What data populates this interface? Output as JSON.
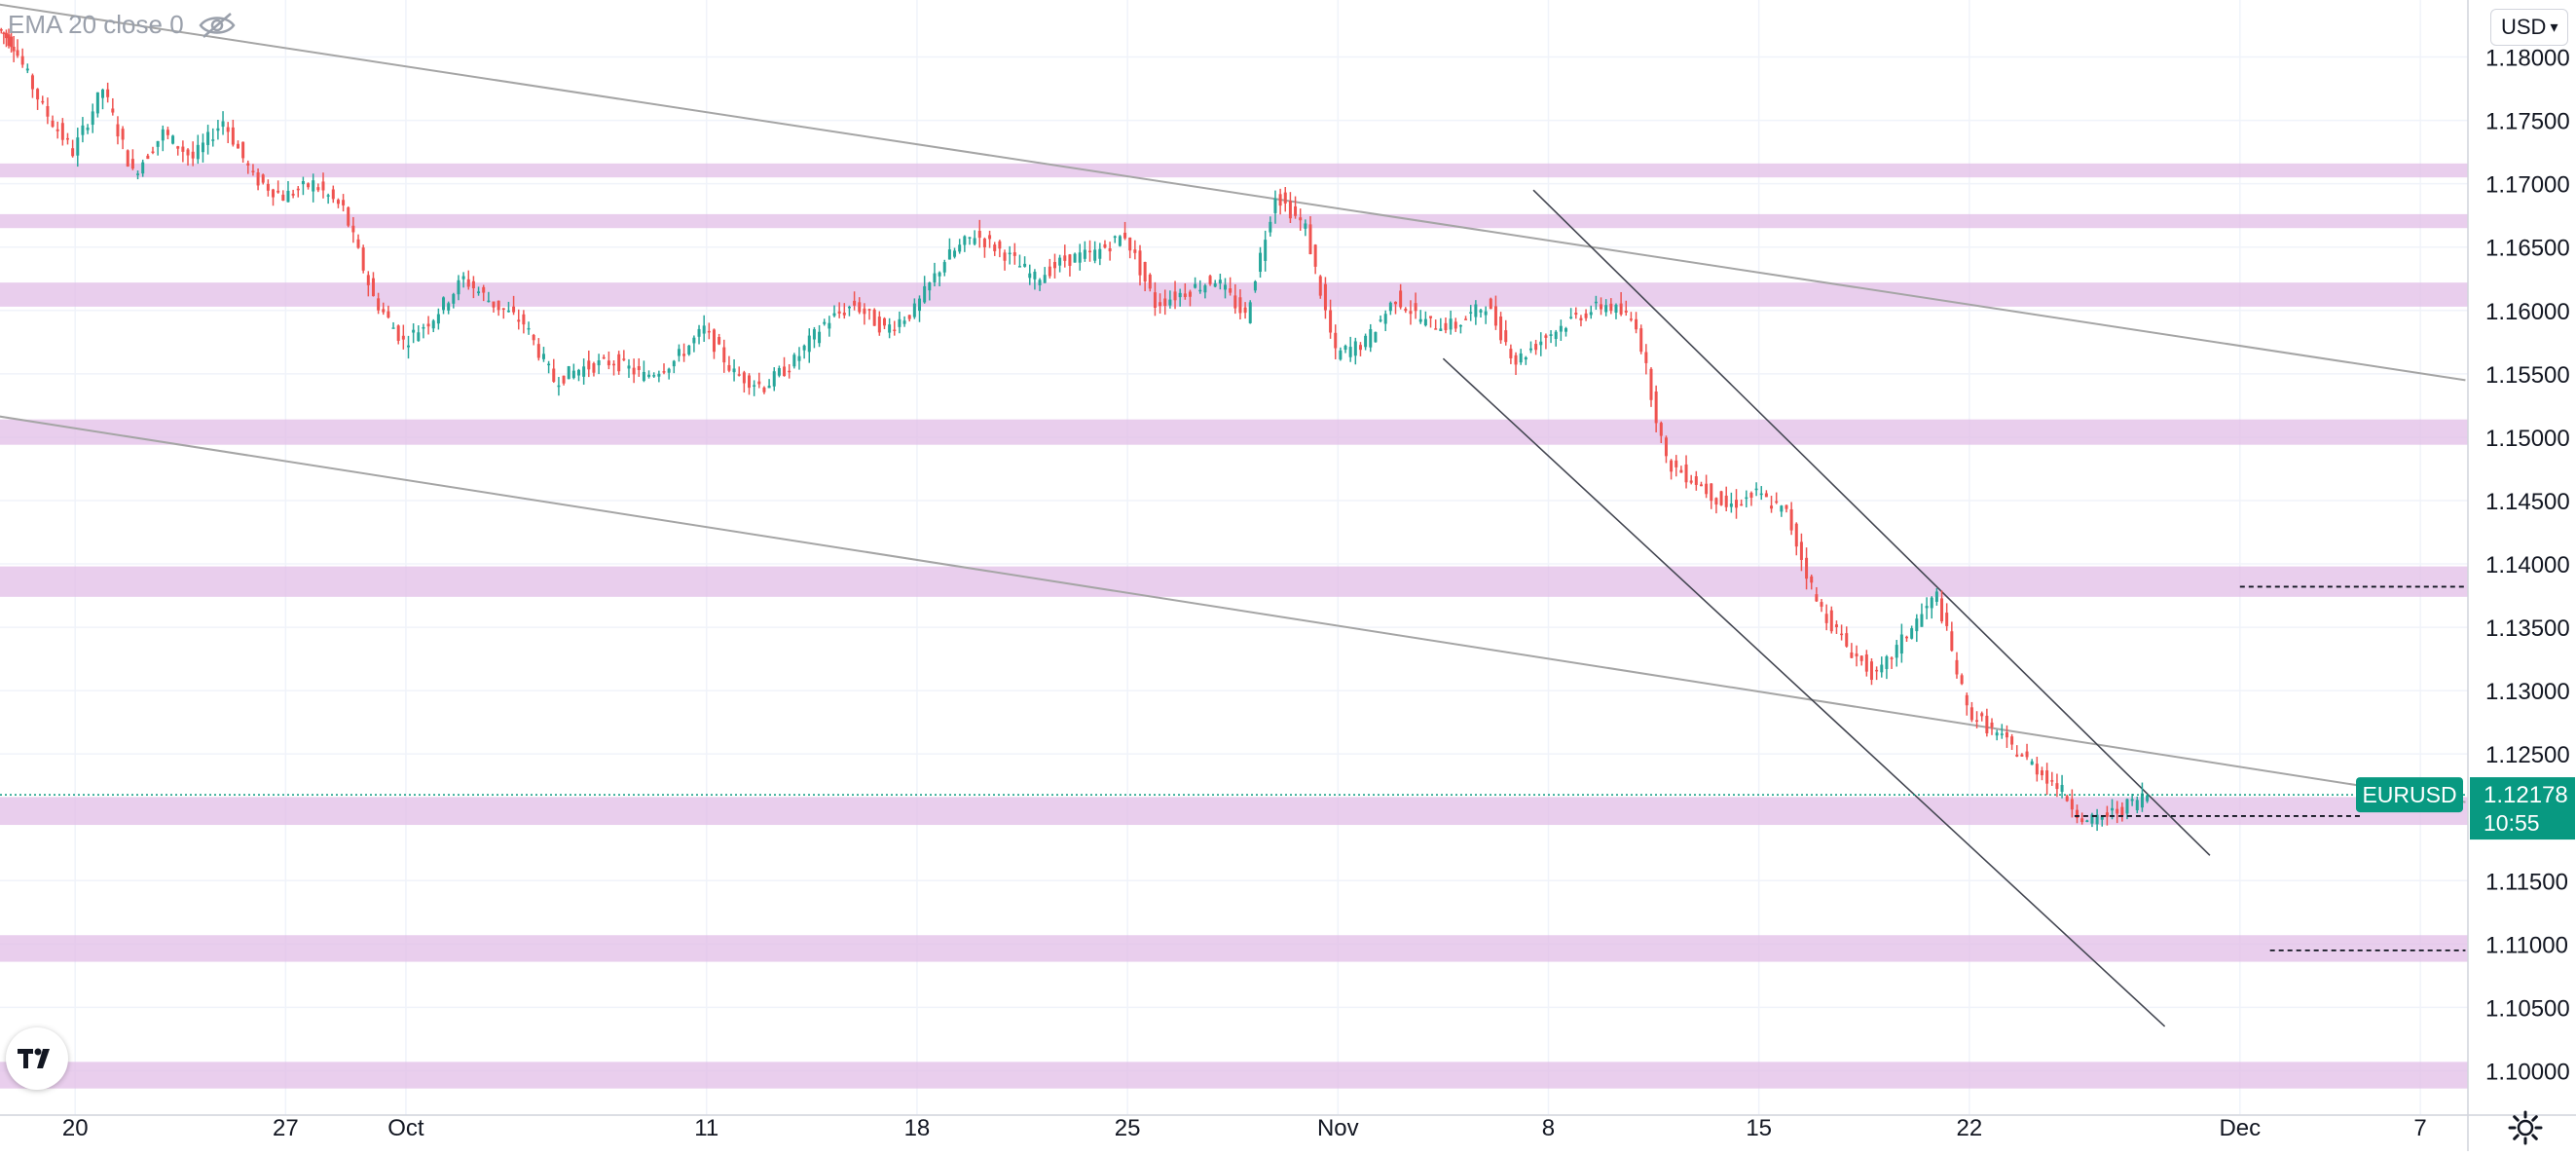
{
  "indicator": {
    "label": "EMA 20 close 0",
    "icon": "eye-crossed-icon"
  },
  "currency": {
    "label": "USD"
  },
  "logo": {
    "text": "TV",
    "icon": "tradingview-logo-icon"
  },
  "settings": {
    "icon": "gear-icon"
  },
  "colors": {
    "up": "#26a69a",
    "down": "#ef5350",
    "zone": "#e1bee7",
    "price_tag": "#089981",
    "trendline": "#a5a5a5"
  },
  "chart_data": {
    "type": "candlestick",
    "symbol": "EURUSD",
    "last_price": "1.12178",
    "countdown": "10:55",
    "y_range": [
      1.0965,
      1.1845
    ],
    "y_ticks": [
      "1.18000",
      "1.17500",
      "1.17000",
      "1.16500",
      "1.16000",
      "1.15500",
      "1.15000",
      "1.14500",
      "1.14000",
      "1.13500",
      "1.13000",
      "1.12500",
      "1.11500",
      "1.11000",
      "1.10500",
      "1.10000"
    ],
    "x_range_days": [
      "2021-09-17T12:00",
      "2021-12-08T14:00"
    ],
    "x_ticks": [
      {
        "label": "20",
        "date": "2021-09-20"
      },
      {
        "label": "27",
        "date": "2021-09-27"
      },
      {
        "label": "Oct",
        "date": "2021-10-01"
      },
      {
        "label": "11",
        "date": "2021-10-11"
      },
      {
        "label": "18",
        "date": "2021-10-18"
      },
      {
        "label": "25",
        "date": "2021-10-25"
      },
      {
        "label": "Nov",
        "date": "2021-11-01"
      },
      {
        "label": "8",
        "date": "2021-11-08"
      },
      {
        "label": "15",
        "date": "2021-11-15"
      },
      {
        "label": "22",
        "date": "2021-11-22"
      },
      {
        "label": "Dec",
        "date": "2021-12-01"
      },
      {
        "label": "7",
        "date": "2021-12-07"
      }
    ],
    "zones": [
      {
        "low": 1.1705,
        "high": 1.1716
      },
      {
        "low": 1.1665,
        "high": 1.1676
      },
      {
        "low": 1.1603,
        "high": 1.1622
      },
      {
        "low": 1.1494,
        "high": 1.1514
      },
      {
        "low": 1.1374,
        "high": 1.1398
      },
      {
        "low": 1.1194,
        "high": 1.1216
      },
      {
        "low": 1.1086,
        "high": 1.1107
      },
      {
        "low": 1.0986,
        "high": 1.1007
      }
    ],
    "close_series": [
      [
        "2021-09-17T12:00",
        1.1822
      ],
      [
        "2021-09-18T00:00",
        1.181
      ],
      [
        "2021-09-19T00:00",
        1.176
      ],
      [
        "2021-09-20T00:00",
        1.1725
      ],
      [
        "2021-09-21T00:00",
        1.1775
      ],
      [
        "2021-09-22T00:00",
        1.1708
      ],
      [
        "2021-09-23T00:00",
        1.174
      ],
      [
        "2021-09-24T00:00",
        1.172
      ],
      [
        "2021-09-25T00:00",
        1.175
      ],
      [
        "2021-09-26T00:00",
        1.1705
      ],
      [
        "2021-09-27T00:00",
        1.169
      ],
      [
        "2021-09-28T00:00",
        1.17
      ],
      [
        "2021-09-29T00:00",
        1.168
      ],
      [
        "2021-09-30T00:00",
        1.161
      ],
      [
        "2021-10-01T00:00",
        1.1575
      ],
      [
        "2021-10-02T00:00",
        1.1595
      ],
      [
        "2021-10-03T00:00",
        1.1625
      ],
      [
        "2021-10-04T00:00",
        1.1605
      ],
      [
        "2021-10-05T00:00",
        1.159
      ],
      [
        "2021-10-06T00:00",
        1.1545
      ],
      [
        "2021-10-07T00:00",
        1.1555
      ],
      [
        "2021-10-08T00:00",
        1.156
      ],
      [
        "2021-10-09T00:00",
        1.1548
      ],
      [
        "2021-10-10T00:00",
        1.156
      ],
      [
        "2021-10-11T00:00",
        1.1585
      ],
      [
        "2021-10-12T00:00",
        1.155
      ],
      [
        "2021-10-13T00:00",
        1.154
      ],
      [
        "2021-10-14T00:00",
        1.156
      ],
      [
        "2021-10-15T00:00",
        1.159
      ],
      [
        "2021-10-16T00:00",
        1.1605
      ],
      [
        "2021-10-17T00:00",
        1.1585
      ],
      [
        "2021-10-18T00:00",
        1.16
      ],
      [
        "2021-10-19T00:00",
        1.164
      ],
      [
        "2021-10-20T00:00",
        1.166
      ],
      [
        "2021-10-21T00:00",
        1.1645
      ],
      [
        "2021-10-22T00:00",
        1.1625
      ],
      [
        "2021-10-23T00:00",
        1.164
      ],
      [
        "2021-10-24T00:00",
        1.1645
      ],
      [
        "2021-10-25T00:00",
        1.166
      ],
      [
        "2021-10-26T00:00",
        1.1605
      ],
      [
        "2021-10-27T00:00",
        1.1615
      ],
      [
        "2021-10-28T00:00",
        1.1625
      ],
      [
        "2021-10-29T00:00",
        1.1595
      ],
      [
        "2021-10-30T00:00",
        1.1692
      ],
      [
        "2021-10-31T00:00",
        1.1665
      ],
      [
        "2021-11-01T00:00",
        1.1565
      ],
      [
        "2021-11-02T00:00",
        1.1575
      ],
      [
        "2021-11-03T00:00",
        1.161
      ],
      [
        "2021-11-04T00:00",
        1.159
      ],
      [
        "2021-11-05T00:00",
        1.1588
      ],
      [
        "2021-11-06T00:00",
        1.1605
      ],
      [
        "2021-11-07T00:00",
        1.156
      ],
      [
        "2021-11-08T00:00",
        1.158
      ],
      [
        "2021-11-09T00:00",
        1.1595
      ],
      [
        "2021-11-10T00:00",
        1.1605
      ],
      [
        "2021-11-11T00:00",
        1.159
      ],
      [
        "2021-11-12T00:00",
        1.148
      ],
      [
        "2021-11-13T00:00",
        1.1465
      ],
      [
        "2021-11-14T00:00",
        1.1445
      ],
      [
        "2021-11-15T00:00",
        1.1455
      ],
      [
        "2021-11-16T00:00",
        1.144
      ],
      [
        "2021-11-17T00:00",
        1.137
      ],
      [
        "2021-11-18T00:00",
        1.1335
      ],
      [
        "2021-11-19T00:00",
        1.131
      ],
      [
        "2021-11-20T00:00",
        1.1345
      ],
      [
        "2021-11-21T00:00",
        1.1375
      ],
      [
        "2021-11-22T00:00",
        1.1285
      ],
      [
        "2021-11-23T00:00",
        1.1265
      ],
      [
        "2021-11-24T00:00",
        1.1245
      ],
      [
        "2021-11-25T00:00",
        1.1225
      ],
      [
        "2021-11-26T00:00",
        1.1195
      ],
      [
        "2021-11-27T00:00",
        1.1205
      ],
      [
        "2021-11-28T00:00",
        1.1218
      ]
    ],
    "trend_lines": [
      {
        "from": [
          "2021-09-16T12:00",
          1.1845
        ],
        "to": [
          "2021-12-08T12:00",
          1.1545
        ]
      },
      {
        "from": [
          "2021-09-16T12:00",
          1.152
        ],
        "to": [
          "2021-12-08T12:00",
          1.1212
        ]
      },
      {
        "from": [
          "2021-11-07T12:00",
          1.1695
        ],
        "to": [
          "2021-11-30T00:00",
          1.117
        ]
      },
      {
        "from": [
          "2021-11-04T12:00",
          1.1562
        ],
        "to": [
          "2021-11-28T12:00",
          1.1035
        ]
      }
    ],
    "dashed_levels": [
      {
        "price": 1.1382,
        "from": "2021-12-01T00:00",
        "to": "2021-12-08T12:00"
      },
      {
        "price": 1.1201,
        "from": "2021-11-25T12:00",
        "to": "2021-12-05T00:00"
      },
      {
        "price": 1.1095,
        "from": "2021-12-02T00:00",
        "to": "2021-12-08T12:00"
      }
    ]
  }
}
